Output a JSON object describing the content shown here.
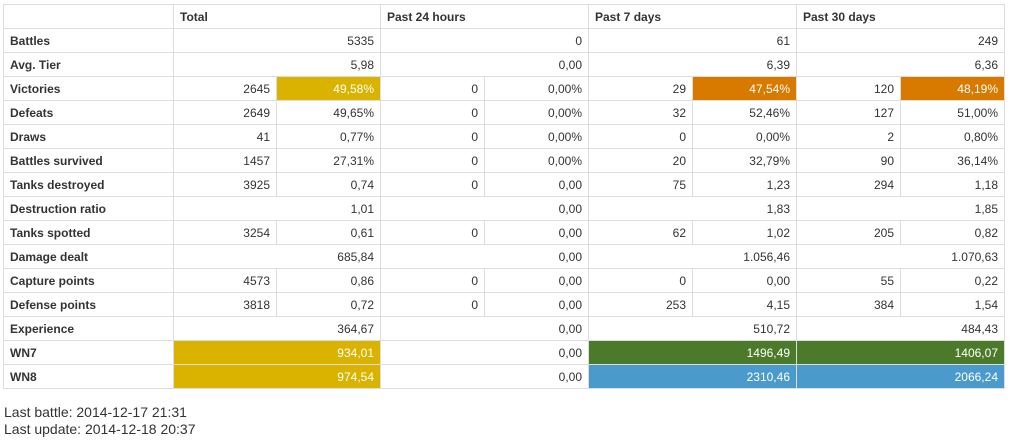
{
  "headers": {
    "corner": "",
    "total": "Total",
    "past24": "Past 24 hours",
    "past7": "Past 7 days",
    "past30": "Past 30 days"
  },
  "rows": [
    {
      "name": "battles",
      "label": "Battles",
      "kind": "single",
      "total": "5335",
      "p24": "0",
      "p7": "61",
      "p30": "249"
    },
    {
      "name": "avg-tier",
      "label": "Avg. Tier",
      "kind": "single",
      "total": "5,98",
      "p24": "0,00",
      "p7": "6,39",
      "p30": "6,36"
    },
    {
      "name": "victories",
      "label": "Victories",
      "kind": "pair",
      "total": [
        "2645",
        "49,58%"
      ],
      "p24": [
        "0",
        "0,00%"
      ],
      "p7": [
        "29",
        "47,54%"
      ],
      "p30": [
        "120",
        "48,19%"
      ],
      "highlight": {
        "total": "yellow",
        "p7": "orange",
        "p30": "orange"
      }
    },
    {
      "name": "defeats",
      "label": "Defeats",
      "kind": "pair",
      "total": [
        "2649",
        "49,65%"
      ],
      "p24": [
        "0",
        "0,00%"
      ],
      "p7": [
        "32",
        "52,46%"
      ],
      "p30": [
        "127",
        "51,00%"
      ]
    },
    {
      "name": "draws",
      "label": "Draws",
      "kind": "pair",
      "total": [
        "41",
        "0,77%"
      ],
      "p24": [
        "0",
        "0,00%"
      ],
      "p7": [
        "0",
        "0,00%"
      ],
      "p30": [
        "2",
        "0,80%"
      ]
    },
    {
      "name": "battles-survived",
      "label": "Battles survived",
      "kind": "pair",
      "total": [
        "1457",
        "27,31%"
      ],
      "p24": [
        "0",
        "0,00%"
      ],
      "p7": [
        "20",
        "32,79%"
      ],
      "p30": [
        "90",
        "36,14%"
      ]
    },
    {
      "name": "tanks-destroyed",
      "label": "Tanks destroyed",
      "kind": "pair",
      "total": [
        "3925",
        "0,74"
      ],
      "p24": [
        "0",
        "0,00"
      ],
      "p7": [
        "75",
        "1,23"
      ],
      "p30": [
        "294",
        "1,18"
      ]
    },
    {
      "name": "destruction-ratio",
      "label": "Destruction ratio",
      "kind": "single",
      "total": "1,01",
      "p24": "0,00",
      "p7": "1,83",
      "p30": "1,85"
    },
    {
      "name": "tanks-spotted",
      "label": "Tanks spotted",
      "kind": "pair",
      "total": [
        "3254",
        "0,61"
      ],
      "p24": [
        "0",
        "0,00"
      ],
      "p7": [
        "62",
        "1,02"
      ],
      "p30": [
        "205",
        "0,82"
      ]
    },
    {
      "name": "damage-dealt",
      "label": "Damage dealt",
      "kind": "single",
      "total": "685,84",
      "p24": "0,00",
      "p7": "1.056,46",
      "p30": "1.070,63"
    },
    {
      "name": "capture-points",
      "label": "Capture points",
      "kind": "pair",
      "total": [
        "4573",
        "0,86"
      ],
      "p24": [
        "0",
        "0,00"
      ],
      "p7": [
        "0",
        "0,00"
      ],
      "p30": [
        "55",
        "0,22"
      ]
    },
    {
      "name": "defense-points",
      "label": "Defense points",
      "kind": "pair",
      "total": [
        "3818",
        "0,72"
      ],
      "p24": [
        "0",
        "0,00"
      ],
      "p7": [
        "253",
        "4,15"
      ],
      "p30": [
        "384",
        "1,54"
      ]
    },
    {
      "name": "experience",
      "label": "Experience",
      "kind": "single",
      "total": "364,67",
      "p24": "0,00",
      "p7": "510,72",
      "p30": "484,43"
    },
    {
      "name": "wn7",
      "label": "WN7",
      "kind": "single",
      "total": "934,01",
      "p24": "0,00",
      "p7": "1496,49",
      "p30": "1406,07",
      "highlight": {
        "total": "yellow",
        "p7": "green",
        "p30": "green"
      }
    },
    {
      "name": "wn8",
      "label": "WN8",
      "kind": "single",
      "total": "974,54",
      "p24": "0,00",
      "p7": "2310,46",
      "p30": "2066,24",
      "highlight": {
        "total": "yellow",
        "p7": "blue",
        "p30": "blue"
      }
    }
  ],
  "colors": {
    "yellow": "#d9b300",
    "orange": "#d97a00",
    "green": "#4a7a2a",
    "blue": "#4a9acb"
  },
  "footer": {
    "last_battle": "Last battle: 2014-12-17 21:31",
    "last_update": "Last update: 2014-12-18 20:37"
  }
}
